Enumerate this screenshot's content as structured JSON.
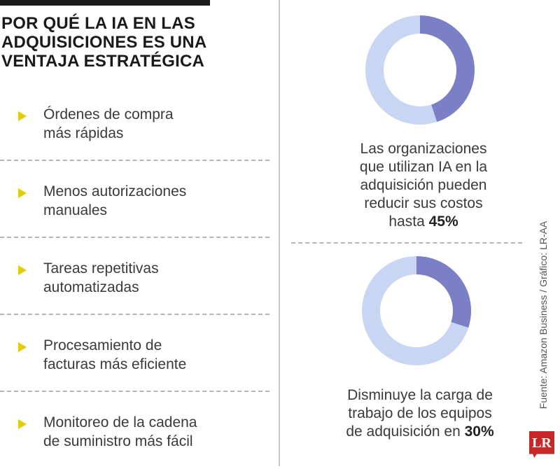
{
  "title_lines": [
    "POR QUÉ LA IA EN LAS",
    "ADQUISICIONES ES UNA",
    "VENTAJA ESTRATÉGICA"
  ],
  "benefits": [
    {
      "lines": [
        "Órdenes de compra",
        "más rápidas"
      ]
    },
    {
      "lines": [
        "Menos autorizaciones",
        "manuales"
      ]
    },
    {
      "lines": [
        "Tareas repetitivas",
        "automatizadas"
      ]
    },
    {
      "lines": [
        "Procesamiento de",
        "facturas más eficiente"
      ]
    },
    {
      "lines": [
        "Monitoreo de la cadena",
        "de suministro más fácil"
      ]
    }
  ],
  "stats": [
    {
      "lines": [
        "Las organizaciones",
        "que utilizan IA en la",
        "adquisición pueden",
        "reducir sus costos"
      ],
      "last_prefix": "hasta ",
      "highlight": "45%"
    },
    {
      "lines": [
        "Disminuye la carga de",
        "trabajo de los equipos"
      ],
      "last_prefix": "de adquisición en ",
      "highlight": "30%"
    }
  ],
  "colors": {
    "accent": "#7b7fc6",
    "track": "#c9d6f3",
    "bullet": "#e1cc08",
    "logo": "#c62828"
  },
  "source": "Fuente: Amazon Business / Gráfico: LR-AA",
  "logo_text": "LR",
  "chart_data": [
    {
      "type": "pie",
      "donut": true,
      "values": [
        45,
        55
      ],
      "colors": [
        "#7b7fc6",
        "#c9d6f3"
      ],
      "label": "45%"
    },
    {
      "type": "pie",
      "donut": true,
      "values": [
        30,
        70
      ],
      "colors": [
        "#7b7fc6",
        "#c9d6f3"
      ],
      "label": "30%"
    }
  ]
}
